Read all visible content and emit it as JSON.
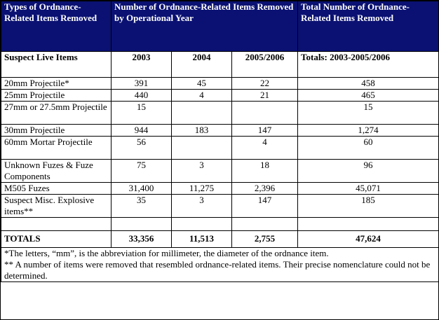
{
  "header": {
    "col_types": "Types of Ordnance-Related Items Removed",
    "col_removed": "Number of Ordnance-Related Items Removed by Operational Year",
    "col_total": "Total Number of Ordnance-Related Items Removed"
  },
  "subheader": {
    "label": "Suspect Live Items",
    "y2003": "2003",
    "y2004": "2004",
    "y2005": "2005/2006",
    "totals": "Totals:  2003-2005/2006"
  },
  "rows": [
    {
      "name": "20mm Projectile*",
      "y2003": "391",
      "y2004": "45",
      "y2005": "22",
      "total": "458"
    },
    {
      "name": "25mm Projectile",
      "y2003": "440",
      "y2004": "4",
      "y2005": "21",
      "total": "465"
    },
    {
      "name": "27mm or 27.5mm Projectile",
      "y2003": "15",
      "y2004": "",
      "y2005": "",
      "total": "15"
    },
    {
      "name": "30mm Projectile",
      "y2003": "944",
      "y2004": "183",
      "y2005": "147",
      "total": "1,274"
    },
    {
      "name": "60mm Mortar Projectile",
      "y2003": "56",
      "y2004": "",
      "y2005": "4",
      "total": "60"
    },
    {
      "name": "Unknown Fuzes & Fuze Components",
      "y2003": "75",
      "y2004": "3",
      "y2005": "18",
      "total": "96"
    },
    {
      "name": "M505 Fuzes",
      "y2003": "31,400",
      "y2004": "11,275",
      "y2005": "2,396",
      "total": "45,071"
    },
    {
      "name": "Suspect  Misc. Explosive items**",
      "y2003": "35",
      "y2004": "3",
      "y2005": "147",
      "total": "185"
    }
  ],
  "totals": {
    "label": "TOTALS",
    "y2003": "33,356",
    "y2004": "11,513",
    "y2005": "2,755",
    "total": "47,624"
  },
  "notes": {
    "note1": "*The letters, “mm”, is the abbreviation for millimeter, the diameter of the ordnance item.",
    "note2": "** A number of items were removed that resembled ordnance-related items.  Their precise nomenclature could not be determined."
  },
  "colors": {
    "header_bg": "#0a1172",
    "header_text": "#ffffff"
  }
}
